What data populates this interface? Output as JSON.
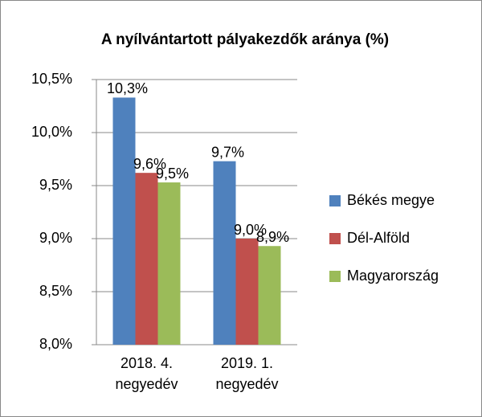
{
  "chart_data": {
    "type": "bar",
    "title": "A nyílvántartott pályakezdők aránya (%)",
    "categories": [
      "2018. 4. negyedév",
      "2019. 1. negyedév"
    ],
    "series": [
      {
        "name": "Békés megye",
        "color": "#4f81bd",
        "values": [
          10.33,
          9.73
        ],
        "value_labels": [
          "10,3%",
          "9,7%"
        ]
      },
      {
        "name": "Dél-Alföld",
        "color": "#c0504d",
        "values": [
          9.62,
          9.0
        ],
        "value_labels": [
          "9,6%",
          "9,0%"
        ]
      },
      {
        "name": "Magyarország",
        "color": "#9bbb59",
        "values": [
          9.53,
          8.93
        ],
        "value_labels": [
          "9,5%",
          "8,9%"
        ]
      }
    ],
    "ylim": [
      8,
      10.5
    ],
    "yticks": [
      {
        "value": 8,
        "label": "8,0%"
      },
      {
        "value": 8.5,
        "label": "8,5%"
      },
      {
        "value": 9,
        "label": "9,0%"
      },
      {
        "value": 9.5,
        "label": "9,5%"
      },
      {
        "value": 10,
        "label": "10,0%"
      },
      {
        "value": 10.5,
        "label": "10,5%"
      }
    ],
    "grid": true,
    "legend": "right"
  }
}
